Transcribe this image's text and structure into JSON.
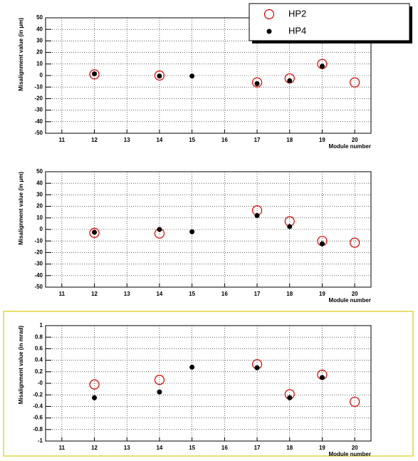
{
  "chart_data": [
    {
      "type": "scatter",
      "ylabel": "Misalignment value (in μm)",
      "xlabel": "Module number",
      "x": [
        12,
        14,
        15,
        17,
        18,
        19,
        20
      ],
      "series": [
        {
          "name": "HP2",
          "color": "#d40000",
          "marker": "open-circle",
          "values": [
            1,
            0,
            null,
            -6,
            -2.5,
            10,
            -6
          ]
        },
        {
          "name": "HP4",
          "color": "#000000",
          "marker": "dot",
          "values": [
            1.5,
            -0.5,
            -0.5,
            -7,
            -4.5,
            8,
            null
          ]
        }
      ],
      "xlim": [
        10.5,
        20.5
      ],
      "xticks": [
        11,
        12,
        13,
        14,
        15,
        16,
        17,
        18,
        19,
        20
      ],
      "ylim": [
        -50,
        50
      ],
      "yticks": [
        -50,
        -40,
        -30,
        -20,
        -10,
        0,
        10,
        20,
        30,
        40,
        50
      ],
      "grid": true,
      "legend": "upper right"
    },
    {
      "type": "scatter",
      "ylabel": "Misalignment value (in μm)",
      "xlabel": "Module number",
      "x": [
        12,
        14,
        15,
        17,
        18,
        19,
        20
      ],
      "series": [
        {
          "color": "#d40000",
          "marker": "open-circle",
          "values": [
            -3,
            -3.5,
            null,
            16.5,
            7,
            -10,
            -11.5
          ]
        },
        {
          "color": "#000000",
          "marker": "dot",
          "values": [
            -2.5,
            0,
            -2,
            12,
            2.5,
            -12.5,
            null
          ]
        }
      ],
      "xlim": [
        10.5,
        20.5
      ],
      "xticks": [
        11,
        12,
        13,
        14,
        15,
        16,
        17,
        18,
        19,
        20
      ],
      "ylim": [
        -50,
        50
      ],
      "yticks": [
        -50,
        -40,
        -30,
        -20,
        -10,
        0,
        10,
        20,
        30,
        40,
        50
      ],
      "grid": true
    },
    {
      "type": "scatter",
      "ylabel": "Misalignment value (in mrad)",
      "xlabel": "Module number",
      "x": [
        12,
        14,
        15,
        17,
        18,
        19,
        20
      ],
      "series": [
        {
          "color": "#d40000",
          "marker": "open-circle",
          "values": [
            -0.02,
            0.06,
            null,
            0.33,
            -0.19,
            0.15,
            -0.32
          ]
        },
        {
          "color": "#000000",
          "marker": "dot",
          "values": [
            -0.25,
            -0.15,
            0.28,
            0.27,
            -0.25,
            0.1,
            null
          ]
        }
      ],
      "xlim": [
        10.5,
        20.5
      ],
      "xticks": [
        11,
        12,
        13,
        14,
        15,
        16,
        17,
        18,
        19,
        20
      ],
      "ylim": [
        -1,
        1
      ],
      "yticks": [
        -1,
        -0.8,
        -0.6,
        -0.4,
        -0.2,
        {
          "value": 0,
          "label": "-0"
        },
        0.2,
        0.4,
        0.6,
        0.8,
        1
      ],
      "grid": true
    }
  ]
}
